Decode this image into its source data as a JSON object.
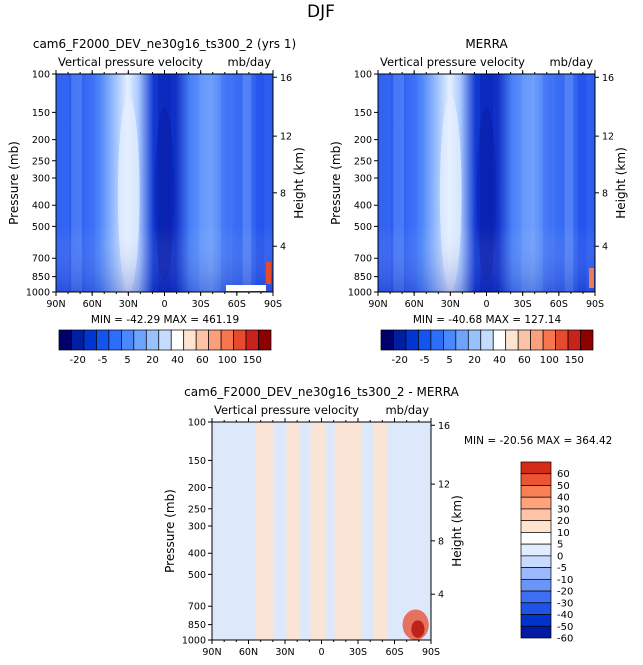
{
  "page_title": "DJF",
  "colors": {
    "top_scale": [
      "#00006a",
      "#001fa0",
      "#0036d0",
      "#1454ee",
      "#2c6ef8",
      "#4a88fb",
      "#6ea4fd",
      "#98c1fe",
      "#c5dcfe",
      "#ffffff",
      "#ffe4d2",
      "#fdc3a6",
      "#fc9f7c",
      "#f6774f",
      "#e74a2e",
      "#c8221b",
      "#8c0000"
    ],
    "diff_scale": [
      "#00007f",
      "#001aa6",
      "#0033cc",
      "#1f52e6",
      "#3d6ff3",
      "#6a95f8",
      "#9bb9fb",
      "#c8dafd",
      "#e2ecfe",
      "#ffffff",
      "#ffe3cf",
      "#fec4a5",
      "#fda47d",
      "#f97f55",
      "#ec5432",
      "#d62b18",
      "#b00f0a",
      "#8b0000"
    ],
    "field_deep": "#1a3ae0",
    "field_mid": "#3a6af5",
    "field_light": "#7fa8fb",
    "field_pale": "#c6dcfe",
    "field_core": "#e4efff",
    "diff_bg": "#dde9fb",
    "diff_warm": "#fde3d1",
    "diff_hot": "#e8533a"
  },
  "chart_data": [
    {
      "type": "heatmap",
      "title": "cam6_F2000_DEV_ne30g16_ts300_2 (yrs 1)",
      "subtitle_left": "Vertical pressure velocity",
      "subtitle_right": "mb/day",
      "ylabel": "Pressure (mb)",
      "ylabel_right": "Height (km)",
      "x_ticks": [
        "90N",
        "60N",
        "30N",
        "0",
        "30S",
        "60S",
        "90S"
      ],
      "y_ticks": [
        "100",
        "150",
        "200",
        "250",
        "300",
        "400",
        "500",
        "700",
        "850",
        "1000"
      ],
      "y_ticks_right": [
        "16",
        "12",
        "8",
        "4"
      ],
      "stats": "MIN = -42.29   MAX = 461.19",
      "colorbar_labels": [
        "-20",
        "-5",
        "5",
        "20",
        "40",
        "60",
        "100",
        "150"
      ]
    },
    {
      "type": "heatmap",
      "title": "MERRA",
      "subtitle_left": "Vertical pressure velocity",
      "subtitle_right": "mb/day",
      "ylabel": "Pressure (mb)",
      "ylabel_right": "Height (km)",
      "x_ticks": [
        "90N",
        "60N",
        "30N",
        "0",
        "30S",
        "60S",
        "90S"
      ],
      "y_ticks": [
        "100",
        "150",
        "200",
        "250",
        "300",
        "400",
        "500",
        "700",
        "850",
        "1000"
      ],
      "y_ticks_right": [
        "16",
        "12",
        "8",
        "4"
      ],
      "stats": "MIN = -40.68   MAX = 127.14",
      "colorbar_labels": [
        "-20",
        "-5",
        "5",
        "20",
        "40",
        "60",
        "100",
        "150"
      ]
    },
    {
      "type": "heatmap",
      "title": "cam6_F2000_DEV_ne30g16_ts300_2 - MERRA",
      "subtitle_left": "Vertical pressure velocity",
      "subtitle_right": "mb/day",
      "ylabel": "Pressure (mb)",
      "ylabel_right": "Height (km)",
      "x_ticks": [
        "90N",
        "60N",
        "30N",
        "0",
        "30S",
        "60S",
        "90S"
      ],
      "y_ticks": [
        "100",
        "150",
        "200",
        "250",
        "300",
        "400",
        "500",
        "700",
        "850",
        "1000"
      ],
      "y_ticks_right": [
        "16",
        "12",
        "8",
        "4"
      ],
      "stats": "MIN = -20.56   MAX = 364.42",
      "colorbar_labels": [
        "60",
        "50",
        "40",
        "30",
        "20",
        "10",
        "5",
        "0",
        "-5",
        "-10",
        "-20",
        "-30",
        "-40",
        "-50",
        "-60"
      ]
    }
  ]
}
